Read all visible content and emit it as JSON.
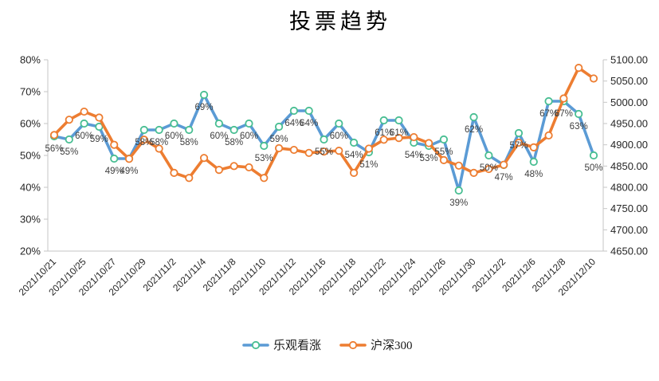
{
  "chart_data": {
    "type": "line",
    "title": "投票趋势",
    "x_count": 37,
    "x_tick_every": 2,
    "x_tick_labels": [
      "2021/10/21",
      "2021/10/25",
      "2021/10/27",
      "2021/10/29",
      "2021/11/2",
      "2021/11/4",
      "2021/11/8",
      "2021/11/10",
      "2021/11/12",
      "2021/11/16",
      "2021/11/18",
      "2021/11/22",
      "2021/11/24",
      "2021/11/26",
      "2021/11/30",
      "2021/12/2",
      "2021/12/6",
      "2021/12/8",
      "2021/12/10"
    ],
    "left_axis": {
      "min": 20,
      "max": 80,
      "step": 10,
      "suffix": "%",
      "tick_labels": [
        "80%",
        "70%",
        "60%",
        "50%",
        "40%",
        "30%",
        "20%"
      ]
    },
    "right_axis": {
      "min": 4650,
      "max": 5100,
      "step": 50,
      "tick_labels": [
        "5100.00",
        "5050.00",
        "5000.00",
        "4950.00",
        "4900.00",
        "4850.00",
        "4800.00",
        "4750.00",
        "4700.00",
        "4650.00"
      ]
    },
    "series": [
      {
        "name": "乐观看涨",
        "axis": "left",
        "line_color": "#5B9BD5",
        "marker_border": "#48BE92",
        "marker_fill": "#FFFFFF",
        "show_labels": true,
        "label_suffix": "%",
        "values": [
          56,
          55,
          60,
          59,
          49,
          49,
          58,
          58,
          60,
          58,
          69,
          60,
          58,
          60,
          53,
          59,
          64,
          64,
          55,
          60,
          54,
          51,
          61,
          61,
          54,
          53,
          55,
          39,
          62,
          50,
          47,
          57,
          48,
          67,
          67,
          63,
          50
        ]
      },
      {
        "name": "沪深300",
        "axis": "right",
        "line_color": "#ED7D31",
        "marker_border": "#ED7D31",
        "marker_fill": "#FFFFFF",
        "show_labels": false,
        "values": [
          4923,
          4959,
          4978,
          4964,
          4900,
          4867,
          4912,
          4891,
          4834,
          4822,
          4869,
          4841,
          4850,
          4847,
          4822,
          4892,
          4888,
          4881,
          4884,
          4886,
          4834,
          4891,
          4912,
          4916,
          4918,
          4904,
          4864,
          4851,
          4834,
          4843,
          4853,
          4905,
          4894,
          4922,
          5009,
          5081,
          5056
        ]
      }
    ],
    "legend": {
      "position": "bottom",
      "entries": [
        "乐观看涨",
        "沪深300"
      ]
    },
    "grid": false
  },
  "colors": {
    "background": "#FFFFFF",
    "axis_line": "#C6C6C6",
    "axis_text": "#262626",
    "data_label_text": "#3F3F3F",
    "series_blue": "#5B9BD5",
    "series_blue_marker_ring": "#48BE92",
    "series_orange": "#ED7D31"
  }
}
